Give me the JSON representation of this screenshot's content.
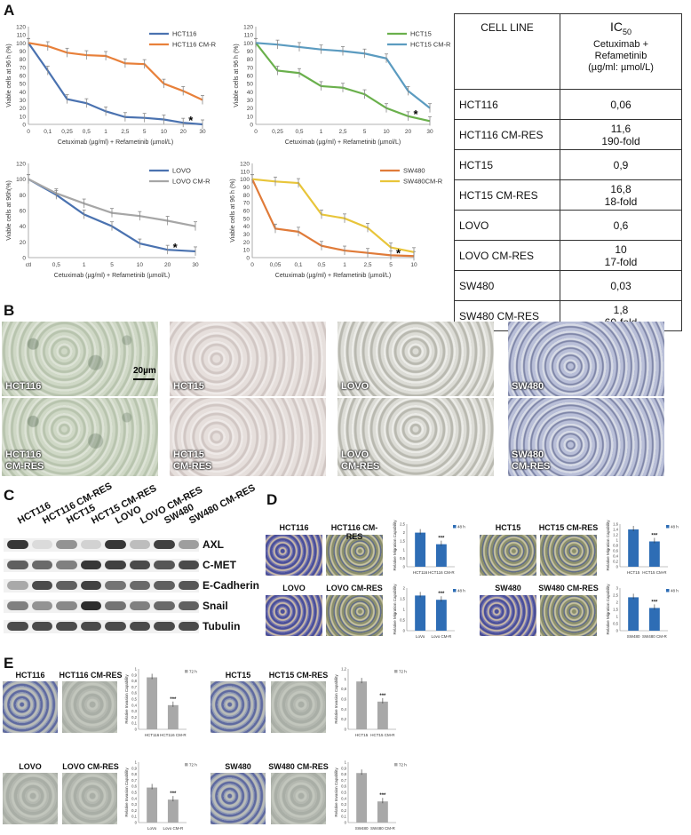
{
  "panel_letters": [
    "A",
    "B",
    "C",
    "D",
    "E"
  ],
  "chart_data": [
    {
      "type": "line",
      "categories": [
        "0",
        "0,1",
        "0,25",
        "0,5",
        "1",
        "2,5",
        "5",
        "10",
        "20",
        "30"
      ],
      "series": [
        {
          "name": "HCT116",
          "color": "#4a72b0",
          "values": [
            100,
            66,
            31,
            26,
            16,
            9,
            8,
            6,
            2,
            0
          ]
        },
        {
          "name": "HCT116 CM-R",
          "color": "#e8803a",
          "values": [
            100,
            96,
            88,
            85,
            84,
            75,
            74,
            50,
            41,
            30
          ]
        }
      ],
      "ylabel": "Viable cells at 96 h (%)",
      "xlabel": "Cetuximab (µg/ml) + Refametinib (µmol/L)",
      "ylim": [
        0,
        120
      ],
      "yticks": [
        "0",
        "10",
        "20",
        "30",
        "40",
        "50",
        "60",
        "70",
        "80",
        "90",
        "100",
        "110",
        "120"
      ],
      "annotation": "*"
    },
    {
      "type": "line",
      "categories": [
        "0",
        "0,25",
        "0,5",
        "1",
        "2,5",
        "5",
        "10",
        "20",
        "30"
      ],
      "series": [
        {
          "name": "HCT15",
          "color": "#6ab04c",
          "values": [
            100,
            66,
            63,
            47,
            45,
            37,
            20,
            10,
            4
          ]
        },
        {
          "name": "HCT15 CM-R",
          "color": "#5b9bc0",
          "values": [
            100,
            98,
            95,
            92,
            90,
            87,
            81,
            41,
            20
          ]
        }
      ],
      "ylabel": "Viable cells at 96 h (%)",
      "xlabel": "Cetuximab (µg/ml) + Refametinib (µmol/L)",
      "ylim": [
        0,
        120
      ],
      "yticks": [
        "0",
        "10",
        "20",
        "30",
        "40",
        "50",
        "60",
        "70",
        "80",
        "90",
        "100",
        "110",
        "120"
      ],
      "annotation": "*"
    },
    {
      "type": "line",
      "categories": [
        "ctl",
        "0,5",
        "1",
        "5",
        "10",
        "20",
        "30"
      ],
      "series": [
        {
          "name": "LOVO",
          "color": "#4a72b0",
          "values": [
            100,
            80,
            55,
            40,
            18,
            10,
            8
          ]
        },
        {
          "name": "LOVO CM-R",
          "color": "#a6a6a6",
          "values": [
            100,
            82,
            69,
            57,
            53,
            47,
            40
          ]
        }
      ],
      "ylabel": "Viable cells at 96h(%)",
      "xlabel": "Cetuximab (µg/ml) + Refametinib (µmol/L)",
      "ylim": [
        0,
        120
      ],
      "yticks": [
        "0",
        "20",
        "40",
        "60",
        "80",
        "100",
        "120"
      ],
      "annotation": "*"
    },
    {
      "type": "line",
      "categories": [
        "0",
        "0,05",
        "0,1",
        "0,5",
        "1",
        "2,5",
        "5",
        "10"
      ],
      "series": [
        {
          "name": "SW480",
          "color": "#e07b39",
          "values": [
            100,
            37,
            33,
            15,
            9,
            6,
            3,
            2
          ]
        },
        {
          "name": "SW480CM-R",
          "color": "#e8c53a",
          "values": [
            100,
            97,
            95,
            55,
            50,
            38,
            13,
            7
          ]
        }
      ],
      "ylabel": "Viable cells at 96 h (%)",
      "xlabel": "Cetuximab (µg/ml) + Refametinib (µmol/L)",
      "ylim": [
        0,
        120
      ],
      "yticks": [
        "0",
        "10",
        "20",
        "30",
        "40",
        "50",
        "60",
        "70",
        "80",
        "90",
        "100",
        "110",
        "120"
      ],
      "annotation": "*"
    },
    {
      "type": "bar",
      "group": "D",
      "categories": [
        "HCT116",
        "HCT116 CM-R"
      ],
      "values": [
        2.0,
        1.32
      ],
      "ylabel": "Relative Migration Capability",
      "legend": "48 h",
      "sig": "***",
      "yticks": [
        "0",
        "0,5",
        "1",
        "1,5",
        "2",
        "2,5"
      ],
      "ylim": [
        0,
        2.5
      ],
      "color": "#2e6db5"
    },
    {
      "type": "bar",
      "group": "D",
      "categories": [
        "HCT15",
        "HCT15 CM-R"
      ],
      "values": [
        1.4,
        0.95
      ],
      "ylabel": "Relative Migration Capability",
      "legend": "48 h",
      "sig": "***",
      "yticks": [
        "0",
        "0,2",
        "0,4",
        "0,6",
        "0,8",
        "1",
        "1,2",
        "1,4",
        "1,6"
      ],
      "ylim": [
        0,
        1.6
      ],
      "color": "#2e6db5"
    },
    {
      "type": "bar",
      "group": "D",
      "categories": [
        "LoVo",
        "Lovo CM-R"
      ],
      "values": [
        1.65,
        1.45
      ],
      "ylabel": "Relative Migration Capability",
      "legend": "48 h",
      "sig": "***",
      "yticks": [
        "0",
        "0,5",
        "1",
        "1,5",
        "2"
      ],
      "ylim": [
        0,
        2
      ],
      "color": "#2e6db5"
    },
    {
      "type": "bar",
      "group": "D",
      "categories": [
        "SW480",
        "SW480 CM-R"
      ],
      "values": [
        2.35,
        1.6
      ],
      "ylabel": "Relative Migration Capability",
      "legend": "48 h",
      "sig": "***",
      "yticks": [
        "0",
        "0,5",
        "1",
        "1,5",
        "2",
        "2,5",
        "3"
      ],
      "ylim": [
        0,
        3
      ],
      "color": "#2e6db5"
    },
    {
      "type": "bar",
      "group": "E",
      "categories": [
        "HCT116",
        "HCT116 CM-R"
      ],
      "values": [
        0.86,
        0.4
      ],
      "ylabel": "Relative Invasion Capability",
      "legend": "72 h",
      "sig": "***",
      "yticks": [
        "0",
        "0,1",
        "0,2",
        "0,3",
        "0,4",
        "0,5",
        "0,6",
        "0,7",
        "0,8",
        "0,9",
        "1"
      ],
      "ylim": [
        0,
        1
      ],
      "color": "#a8a8a8"
    },
    {
      "type": "bar",
      "group": "E",
      "categories": [
        "HCT15",
        "HCT15 CM-R"
      ],
      "values": [
        0.95,
        0.55
      ],
      "ylabel": "Relative Invasion Capability",
      "legend": "72 h",
      "sig": "***",
      "yticks": [
        "0",
        "0,2",
        "0,4",
        "0,6",
        "0,8",
        "1",
        "1,2"
      ],
      "ylim": [
        0,
        1.2
      ],
      "color": "#a8a8a8"
    },
    {
      "type": "bar",
      "group": "E",
      "categories": [
        "LoVo",
        "Lovo CM-R"
      ],
      "values": [
        0.58,
        0.38
      ],
      "ylabel": "Relative Invasion Capability",
      "legend": "72 h",
      "sig": "***",
      "yticks": [
        "0",
        "0,1",
        "0,2",
        "0,3",
        "0,4",
        "0,5",
        "0,6",
        "0,7",
        "0,8",
        "0,9",
        "1"
      ],
      "ylim": [
        0,
        1
      ],
      "color": "#a8a8a8"
    },
    {
      "type": "bar",
      "group": "E",
      "categories": [
        "SW480",
        "SW480 CM-R"
      ],
      "values": [
        0.82,
        0.35
      ],
      "ylabel": "Relative Invasion Capability",
      "legend": "72 h",
      "sig": "***",
      "yticks": [
        "0",
        "0,1",
        "0,2",
        "0,3",
        "0,4",
        "0,5",
        "0,6",
        "0,7",
        "0,8",
        "0,9",
        "1"
      ],
      "ylim": [
        0,
        1
      ],
      "color": "#a8a8a8"
    }
  ],
  "ic50_table": {
    "col1": "CELL LINE",
    "col2_main": "IC",
    "col2_sub": "50",
    "col2_lines": [
      "Cetuximab +",
      "Refametinib",
      "(µg/ml: µmol/L)"
    ],
    "rows": [
      {
        "line": "HCT116",
        "value": "0,06",
        "fold": ""
      },
      {
        "line": "HCT116 CM-RES",
        "value": "11,6",
        "fold": "190-fold"
      },
      {
        "line": "HCT15",
        "value": "0,9",
        "fold": ""
      },
      {
        "line": "HCT15 CM-RES",
        "value": "16,8",
        "fold": "18-fold"
      },
      {
        "line": "LOVO",
        "value": "0,6",
        "fold": ""
      },
      {
        "line": "LOVO CM-RES",
        "value": "10",
        "fold": "17-fold"
      },
      {
        "line": "SW480",
        "value": "0,03",
        "fold": ""
      },
      {
        "line": "SW480 CM-RES",
        "value": "1,8",
        "fold": "60-fold"
      }
    ]
  },
  "micrographs_B": {
    "top": [
      "HCT116",
      "HCT15",
      "LOVO",
      "SW480"
    ],
    "bottom": [
      "HCT116\nCM-RES",
      "HCT15\nCM-RES",
      "LOVO\nCM-RES",
      "SW480\nCM-RES"
    ],
    "scale_bar": "20µm"
  },
  "western_blot": {
    "lanes": [
      "HCT116",
      "HCT116 CM-RES",
      "HCT15",
      "HCT15 CM-RES",
      "LOVO",
      "LOVO CM-RES",
      "SW480",
      "SW480 CM-RES"
    ],
    "proteins": [
      "AXL",
      "C-MET",
      "E-Cadherin",
      "Snail",
      "Tubulin"
    ],
    "intensities": [
      [
        0.9,
        0.1,
        0.45,
        0.15,
        0.9,
        0.25,
        0.85,
        0.4
      ],
      [
        0.7,
        0.65,
        0.55,
        0.9,
        0.85,
        0.8,
        0.75,
        0.8
      ],
      [
        0.35,
        0.8,
        0.7,
        0.85,
        0.6,
        0.65,
        0.7,
        0.75
      ],
      [
        0.55,
        0.45,
        0.5,
        0.95,
        0.6,
        0.55,
        0.65,
        0.7
      ],
      [
        0.8,
        0.8,
        0.8,
        0.8,
        0.8,
        0.8,
        0.8,
        0.8
      ]
    ]
  },
  "panel_D_labels": [
    "HCT116",
    "HCT116 CM-RES",
    "HCT15",
    "HCT15 CM-RES",
    "LOVO",
    "LOVO CM-RES",
    "SW480",
    "SW480 CM-RES"
  ],
  "panel_E_labels": [
    "HCT116",
    "HCT116 CM-RES",
    "HCT15",
    "HCT15 CM-RES",
    "LOVO",
    "LOVO CM-RES",
    "SW480",
    "SW480 CM-RES"
  ]
}
